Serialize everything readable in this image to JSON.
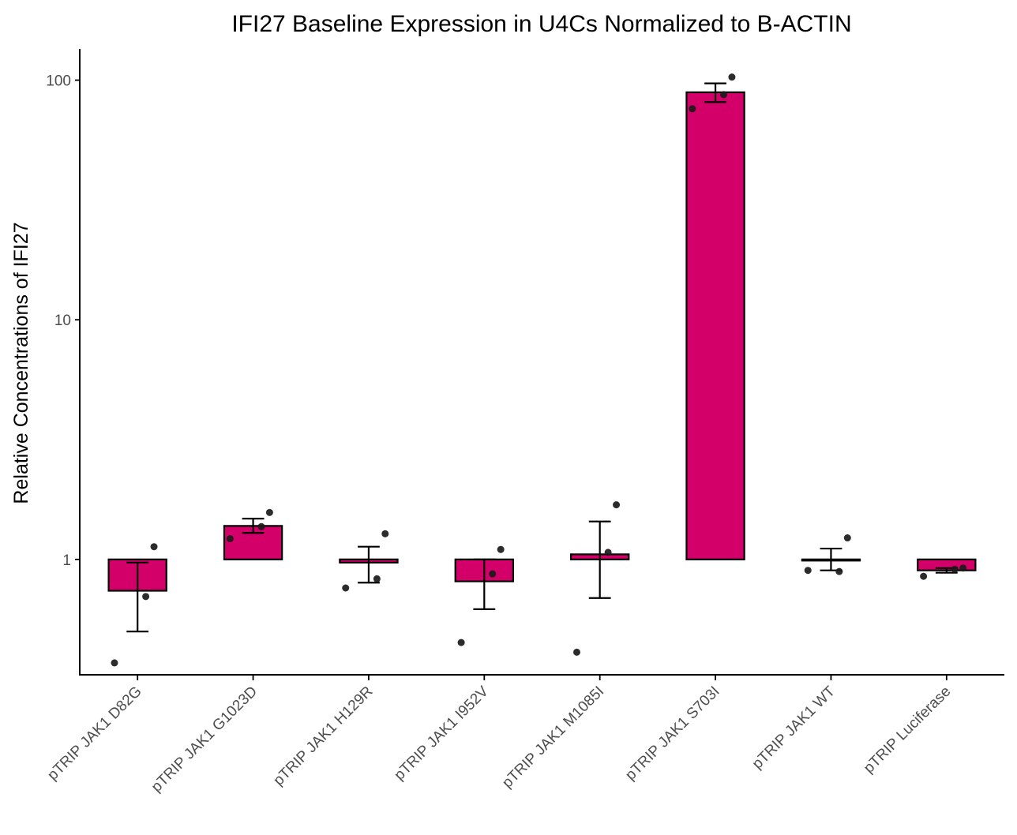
{
  "chart_data": {
    "type": "bar",
    "title": "IFI27 Baseline Expression in U4Cs Normalized to B-ACTIN",
    "xlabel": "",
    "ylabel": "Relative Concentrations of IFI27",
    "y_scale": "log10",
    "ylim": [
      0.33,
      135
    ],
    "y_ticks": [
      1,
      10,
      100
    ],
    "y_tick_labels": [
      "1",
      "10",
      "100"
    ],
    "bar_baseline": 1,
    "grid": false,
    "legend": "none",
    "colors": {
      "bar_fill": "#d4006a",
      "bar_stroke": "#000000",
      "point": "#1a1a1a",
      "errorbar": "#000000",
      "axis": "#000000"
    },
    "categories": [
      "pTRIP JAK1 D82G",
      "pTRIP JAK1 G1023D",
      "pTRIP JAK1 H129R",
      "pTRIP JAK1 I952V",
      "pTRIP JAK1 M1085I",
      "pTRIP JAK1 S703I",
      "pTRIP JAK1 WT",
      "pTRIP Luciferase"
    ],
    "values": [
      0.74,
      1.38,
      0.97,
      0.81,
      1.05,
      89,
      1.0,
      0.9
    ],
    "error_low": [
      0.5,
      1.29,
      0.8,
      0.62,
      0.69,
      81,
      0.9,
      0.88
    ],
    "error_high": [
      0.97,
      1.48,
      1.13,
      1.0,
      1.44,
      97,
      1.11,
      0.92
    ],
    "points": [
      [
        1.13,
        0.7,
        0.37
      ],
      [
        1.57,
        1.37,
        1.22
      ],
      [
        1.28,
        0.83,
        0.76
      ],
      [
        1.1,
        0.87,
        0.45
      ],
      [
        1.69,
        1.07,
        0.41
      ],
      [
        103,
        87,
        76
      ],
      [
        1.23,
        0.89,
        0.9
      ],
      [
        0.92,
        0.91,
        0.85
      ]
    ]
  }
}
